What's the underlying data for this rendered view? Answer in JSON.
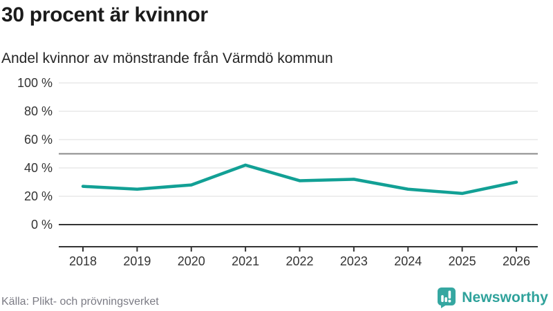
{
  "title": "30 procent är kvinnor",
  "subtitle": "Andel kvinnor av mönstrande från Värmdö kommun",
  "source": {
    "text": "Källa: Plikt- och prövningsverket"
  },
  "logo": {
    "text": "Newsworthy",
    "icon": "newsworthy-bar-chart-bubble-icon",
    "color": "#35a7a1"
  },
  "colors": {
    "line": "#12a095",
    "grid": "#e9e9e9",
    "reference_line": "#8a8a8a",
    "baseline": "#333333",
    "axis": "#333333",
    "tick_text": "#333333"
  },
  "chart_data": {
    "type": "line",
    "title": "30 procent är kvinnor",
    "subtitle": "Andel kvinnor av mönstrande från Värmdö kommun",
    "x": [
      "2018",
      "2019",
      "2020",
      "2021",
      "2022",
      "2023",
      "2024",
      "2025",
      "2026"
    ],
    "series": [
      {
        "name": "Andel kvinnor av mönstrande",
        "values": [
          27,
          25,
          28,
          42,
          31,
          32,
          25,
          22,
          30
        ]
      }
    ],
    "unit": "%",
    "ylim": [
      0,
      100
    ],
    "yticks": [
      {
        "value": 0,
        "label": "0 %"
      },
      {
        "value": 20,
        "label": "20 %"
      },
      {
        "value": 40,
        "label": "40 %"
      },
      {
        "value": 60,
        "label": "60 %"
      },
      {
        "value": 80,
        "label": "80 %"
      },
      {
        "value": 100,
        "label": "100 %"
      }
    ],
    "reference_line": 50,
    "grid": true,
    "legend": false
  }
}
